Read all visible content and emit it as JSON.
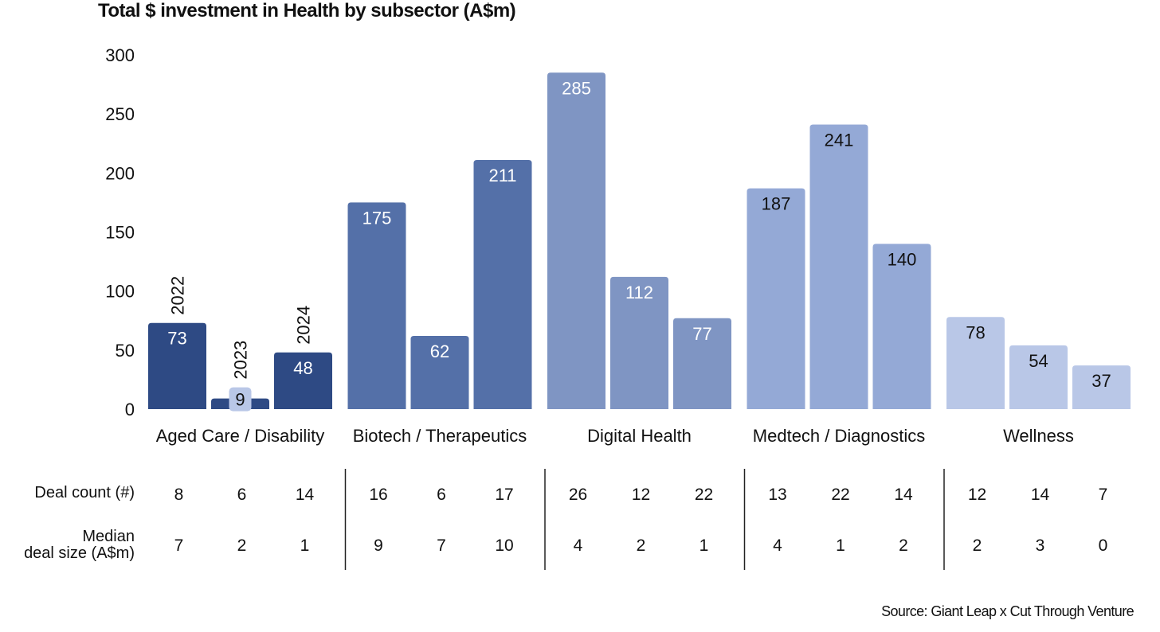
{
  "title": "Total $ investment in Health by subsector (A$m)",
  "source": "Source: Giant Leap x Cut Through Venture",
  "chart_data": {
    "type": "bar",
    "title": "Total $ investment in Health by subsector (A$m)",
    "ylim": [
      0,
      300
    ],
    "yticks": [
      "0",
      "50",
      "100",
      "150",
      "200",
      "250",
      "300"
    ],
    "years": [
      "2022",
      "2023",
      "2024"
    ],
    "grid": false,
    "groups": [
      {
        "name": "Aged Care / Disability",
        "color": "#2e4a84",
        "label_color": "#ffffff",
        "values": [
          73,
          9,
          48
        ],
        "deal_count": [
          "8",
          "6",
          "14"
        ],
        "median_deal_size": [
          "7",
          "2",
          "1"
        ]
      },
      {
        "name": "Biotech / Therapeutics",
        "color": "#5470a8",
        "label_color": "#ffffff",
        "values": [
          175,
          62,
          211
        ],
        "deal_count": [
          "16",
          "6",
          "17"
        ],
        "median_deal_size": [
          "9",
          "7",
          "10"
        ]
      },
      {
        "name": "Digital Health",
        "color": "#7f95c3",
        "label_color": "#ffffff",
        "values": [
          285,
          112,
          77
        ],
        "deal_count": [
          "26",
          "12",
          "22"
        ],
        "median_deal_size": [
          "4",
          "2",
          "1"
        ]
      },
      {
        "name": "Medtech / Diagnostics",
        "color": "#94a9d6",
        "label_color": "#111111",
        "values": [
          187,
          241,
          140
        ],
        "deal_count": [
          "13",
          "22",
          "14"
        ],
        "median_deal_size": [
          "4",
          "1",
          "2"
        ]
      },
      {
        "name": "Wellness",
        "color": "#b9c7e7",
        "label_color": "#111111",
        "values": [
          78,
          54,
          37
        ],
        "deal_count": [
          "12",
          "14",
          "7"
        ],
        "median_deal_size": [
          "2",
          "3",
          "0"
        ]
      }
    ],
    "small_value_badge_color": "#b9c7e7",
    "row_labels": {
      "deal_count": "Deal count (#)",
      "median_line1": "Median",
      "median_line2": "deal size (A$m)"
    }
  }
}
